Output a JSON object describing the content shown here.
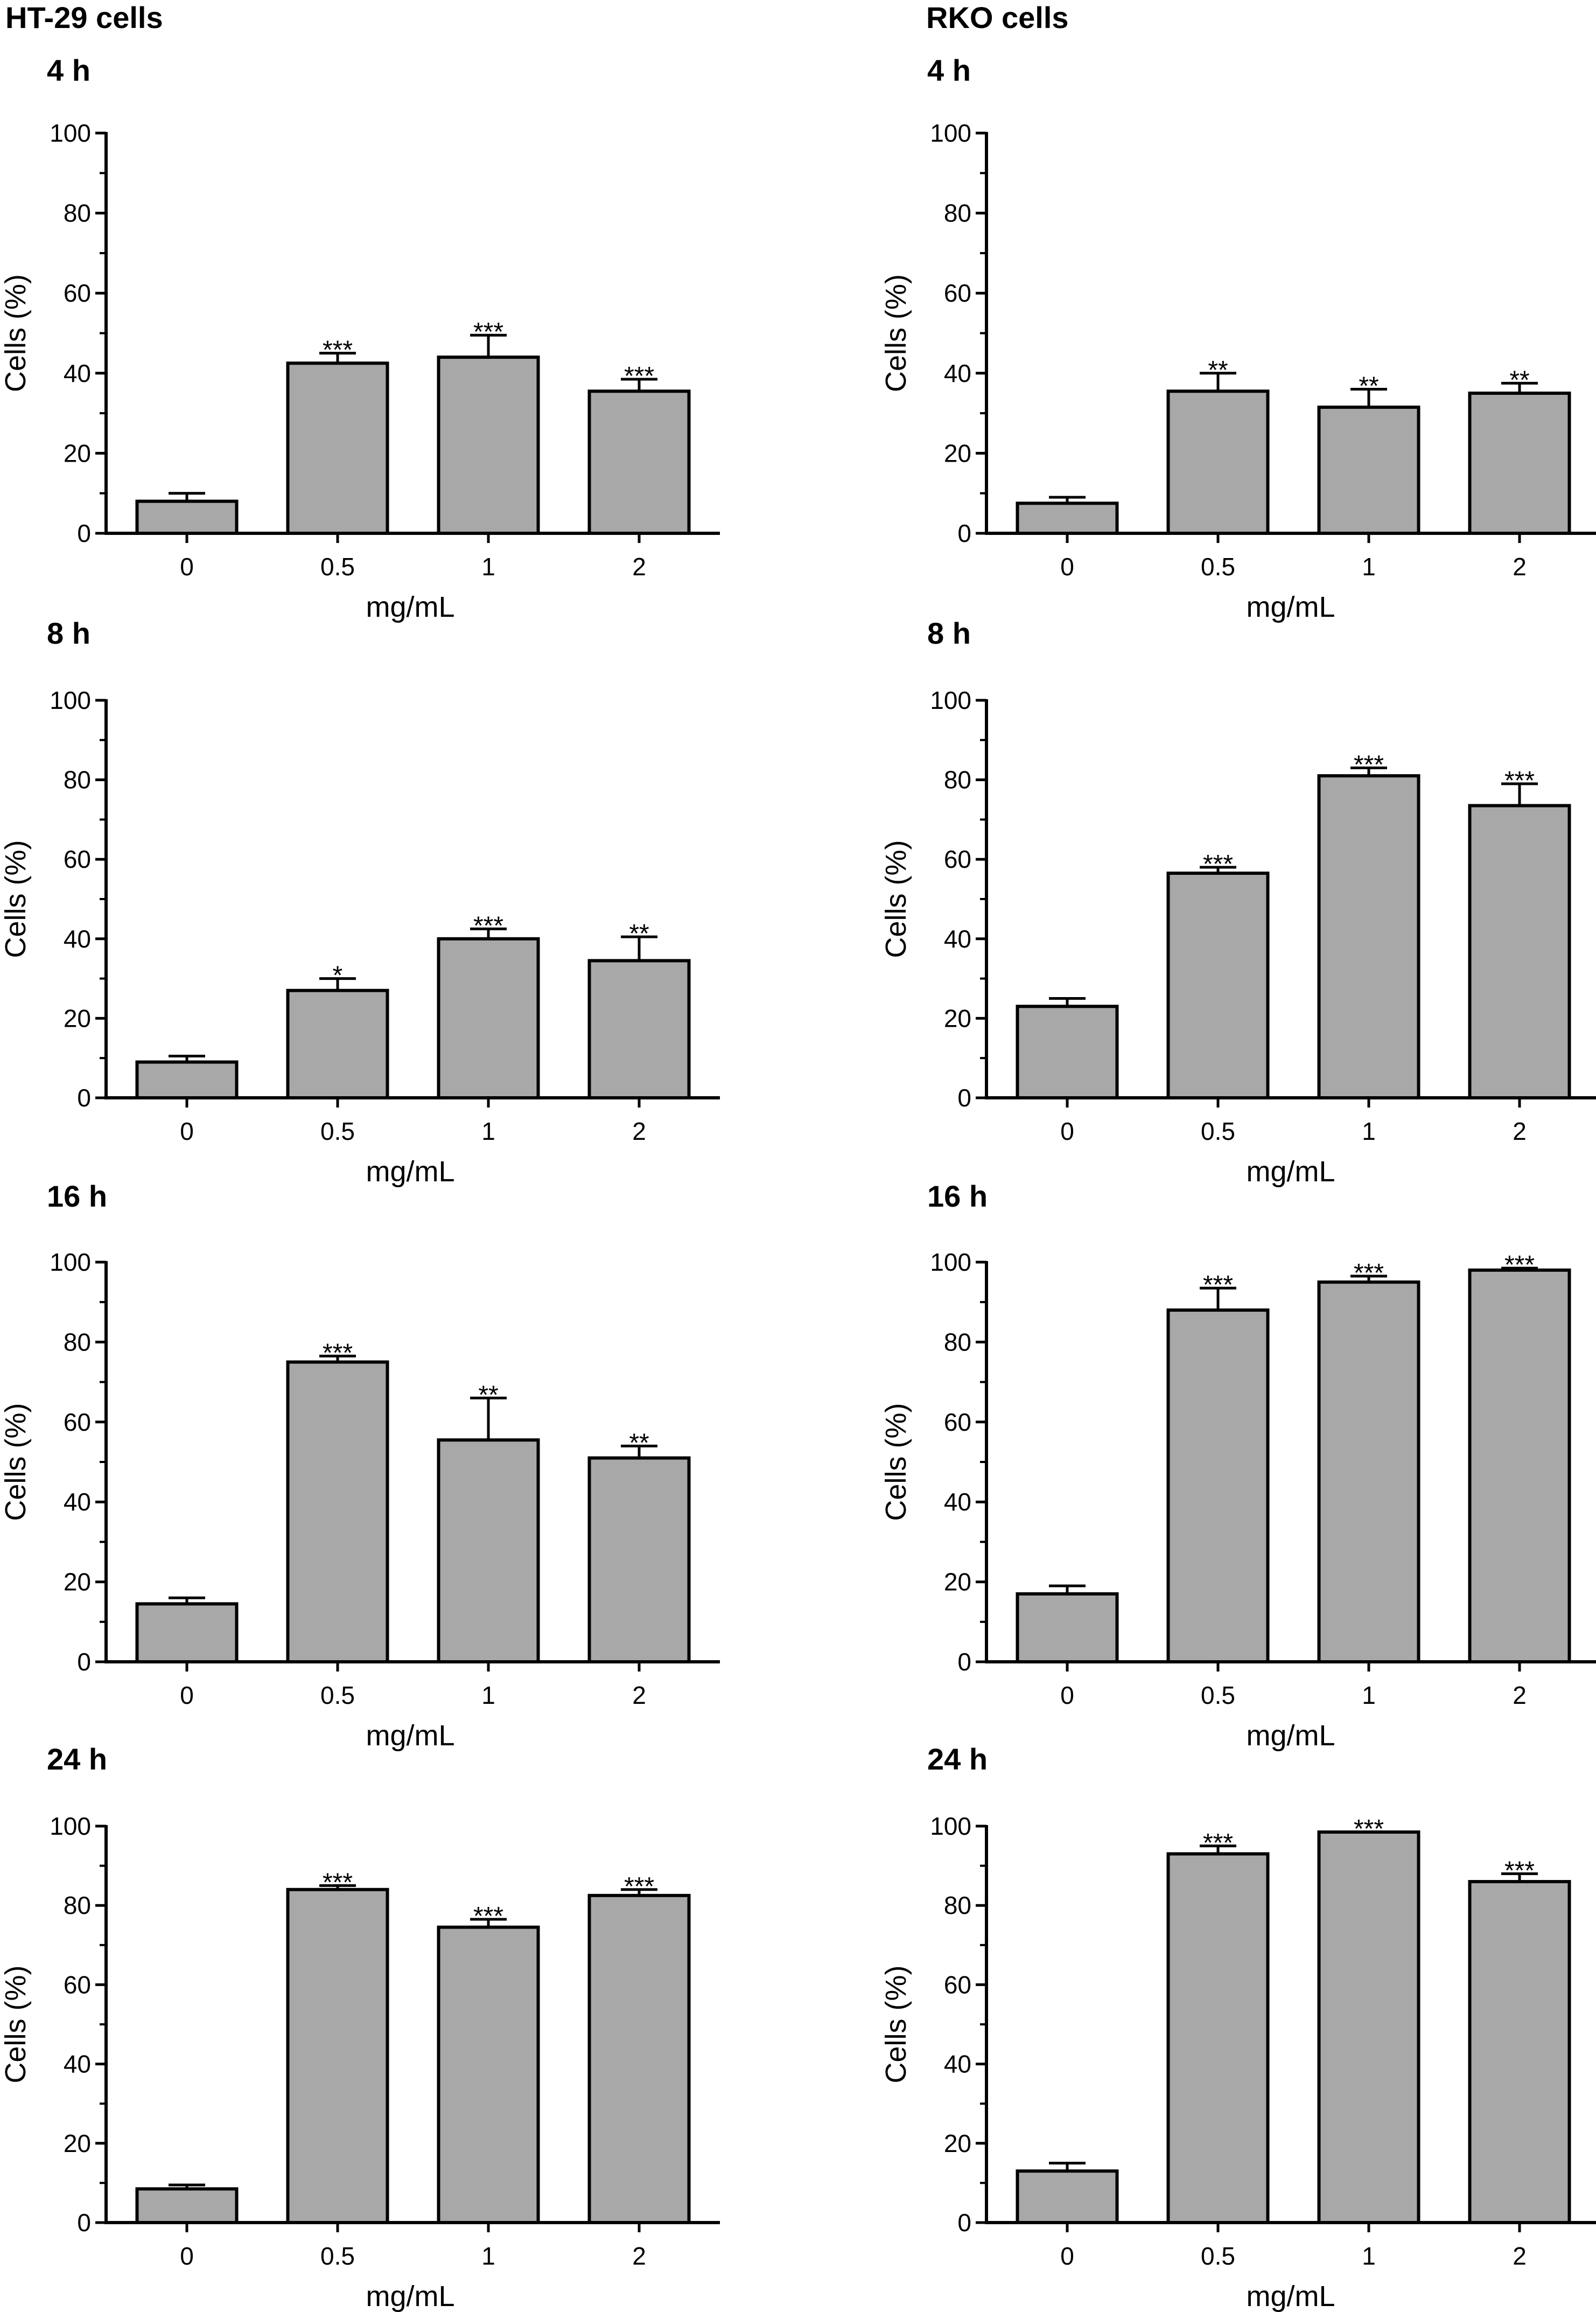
{
  "figure": {
    "column_titles": [
      "HT-29 cells",
      "RKO cells"
    ]
  },
  "chart_data": [
    {
      "type": "bar",
      "cell_line": "HT-29 cells",
      "title": "4 h",
      "xlabel": "mg/mL",
      "ylabel": "Cells (%)",
      "ylim": [
        0,
        100
      ],
      "yticks": [
        0,
        20,
        40,
        60,
        80,
        100
      ],
      "categories": [
        "0",
        "0.5",
        "1",
        "2"
      ],
      "values": [
        8,
        42.5,
        44,
        35.5
      ],
      "errors": [
        2,
        2.5,
        5.5,
        3
      ],
      "significance": [
        "",
        "***",
        "***",
        "***"
      ]
    },
    {
      "type": "bar",
      "cell_line": "RKO cells",
      "title": "4 h",
      "xlabel": "mg/mL",
      "ylabel": "Cells (%)",
      "ylim": [
        0,
        100
      ],
      "yticks": [
        0,
        20,
        40,
        60,
        80,
        100
      ],
      "categories": [
        "0",
        "0.5",
        "1",
        "2"
      ],
      "values": [
        7.5,
        35.5,
        31.5,
        35
      ],
      "errors": [
        1.5,
        4.5,
        4.5,
        2.5
      ],
      "significance": [
        "",
        "**",
        "**",
        "**"
      ]
    },
    {
      "type": "bar",
      "cell_line": "HT-29 cells",
      "title": "8 h",
      "xlabel": "mg/mL",
      "ylabel": "Cells (%)",
      "ylim": [
        0,
        100
      ],
      "yticks": [
        0,
        20,
        40,
        60,
        80,
        100
      ],
      "categories": [
        "0",
        "0.5",
        "1",
        "2"
      ],
      "values": [
        9,
        27,
        40,
        34.5
      ],
      "errors": [
        1.5,
        3,
        2.5,
        6
      ],
      "significance": [
        "",
        "*",
        "***",
        "**"
      ]
    },
    {
      "type": "bar",
      "cell_line": "RKO cells",
      "title": "8 h",
      "xlabel": "mg/mL",
      "ylabel": "Cells (%)",
      "ylim": [
        0,
        100
      ],
      "yticks": [
        0,
        20,
        40,
        60,
        80,
        100
      ],
      "categories": [
        "0",
        "0.5",
        "1",
        "2"
      ],
      "values": [
        23,
        56.5,
        81,
        73.5
      ],
      "errors": [
        2,
        1.5,
        2,
        5.5
      ],
      "significance": [
        "",
        "***",
        "***",
        "***"
      ]
    },
    {
      "type": "bar",
      "cell_line": "HT-29 cells",
      "title": "16 h",
      "xlabel": "mg/mL",
      "ylabel": "Cells (%)",
      "ylim": [
        0,
        100
      ],
      "yticks": [
        0,
        20,
        40,
        60,
        80,
        100
      ],
      "categories": [
        "0",
        "0.5",
        "1",
        "2"
      ],
      "values": [
        14.5,
        75,
        55.5,
        51
      ],
      "errors": [
        1.5,
        1.5,
        10.5,
        3
      ],
      "significance": [
        "",
        "***",
        "**",
        "**"
      ]
    },
    {
      "type": "bar",
      "cell_line": "RKO cells",
      "title": "16 h",
      "xlabel": "mg/mL",
      "ylabel": "Cells (%)",
      "ylim": [
        0,
        100
      ],
      "yticks": [
        0,
        20,
        40,
        60,
        80,
        100
      ],
      "categories": [
        "0",
        "0.5",
        "1",
        "2"
      ],
      "values": [
        17,
        88,
        95,
        98
      ],
      "errors": [
        2,
        5.5,
        1.5,
        0.5
      ],
      "significance": [
        "",
        "***",
        "***",
        "***"
      ]
    },
    {
      "type": "bar",
      "cell_line": "HT-29 cells",
      "title": "24 h",
      "xlabel": "mg/mL",
      "ylabel": "Cells (%)",
      "ylim": [
        0,
        100
      ],
      "yticks": [
        0,
        20,
        40,
        60,
        80,
        100
      ],
      "categories": [
        "0",
        "0.5",
        "1",
        "2"
      ],
      "values": [
        8.5,
        84,
        74.5,
        82.5
      ],
      "errors": [
        1,
        1,
        2,
        1.5
      ],
      "significance": [
        "",
        "***",
        "***",
        "***"
      ]
    },
    {
      "type": "bar",
      "cell_line": "RKO cells",
      "title": "24 h",
      "xlabel": "mg/mL",
      "ylabel": "Cells (%)",
      "ylim": [
        0,
        100
      ],
      "yticks": [
        0,
        20,
        40,
        60,
        80,
        100
      ],
      "categories": [
        "0",
        "0.5",
        "1",
        "2"
      ],
      "values": [
        13,
        93,
        98.5,
        86
      ],
      "errors": [
        2,
        2,
        0,
        2
      ],
      "significance": [
        "",
        "***",
        "***",
        "***"
      ]
    }
  ],
  "colors": {
    "bar_fill": "#a8a8a8",
    "stroke": "#000000"
  }
}
